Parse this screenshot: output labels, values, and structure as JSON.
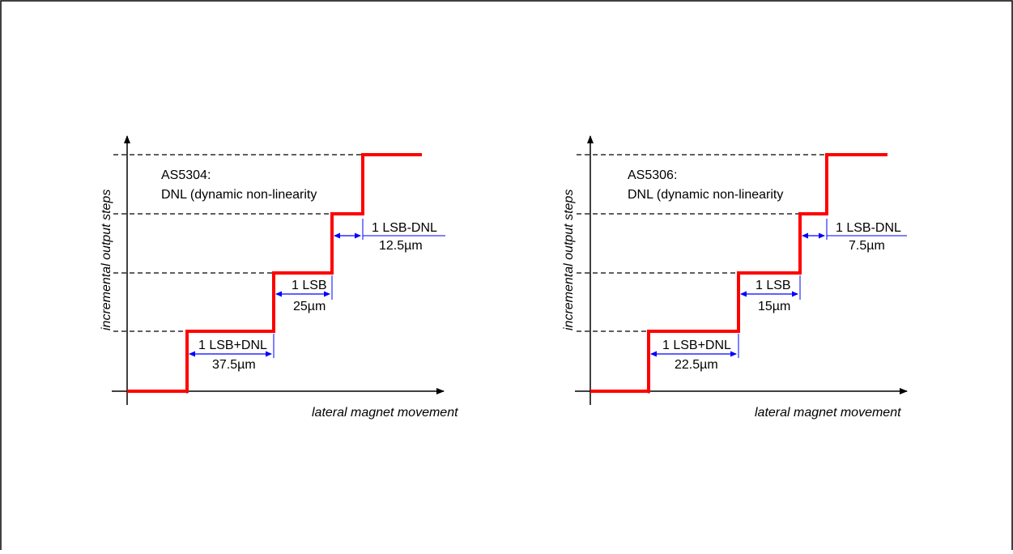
{
  "colors": {
    "step_line": "#ff0000",
    "dimension_arrow": "#0000ff",
    "axis": "#000000",
    "frame": "#000000"
  },
  "diagrams": [
    {
      "id": "left",
      "device_label": "AS5304:",
      "dnl_label": "DNL (dynamic non-linearity",
      "y_axis_label": "incremental output steps",
      "x_axis_label": "lateral magnet movement",
      "step_small": {
        "top": "1 LSB-DNL",
        "bottom": "12.5µm"
      },
      "step_nominal": {
        "top": "1 LSB",
        "bottom": "25µm"
      },
      "step_large": {
        "top": "1 LSB+DNL",
        "bottom": "37.5µm"
      }
    },
    {
      "id": "right",
      "device_label": "AS5306:",
      "dnl_label": "DNL (dynamic non-linearity",
      "y_axis_label": "incremental output steps",
      "x_axis_label": "lateral magnet movement",
      "step_small": {
        "top": "1 LSB-DNL",
        "bottom": "7.5µm"
      },
      "step_nominal": {
        "top": "1 LSB",
        "bottom": "15µm"
      },
      "step_large": {
        "top": "1 LSB+DNL",
        "bottom": "22.5µm"
      }
    }
  ]
}
